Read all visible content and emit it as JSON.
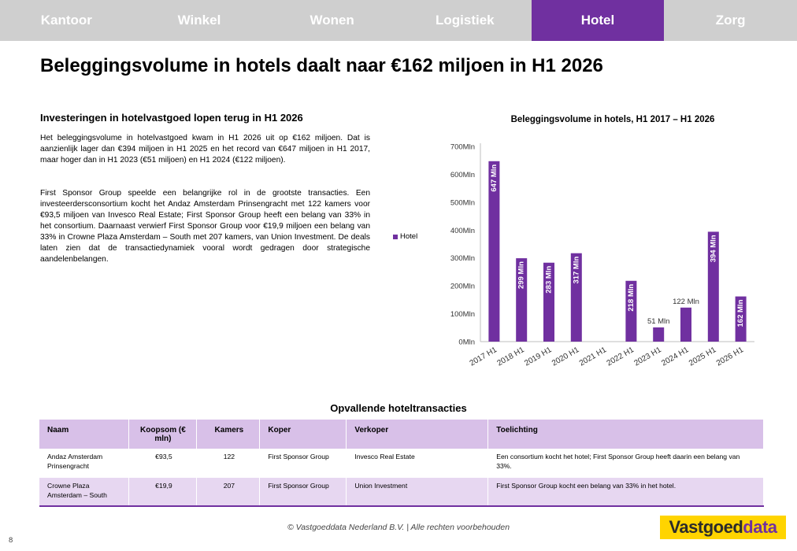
{
  "nav": {
    "tabs": [
      {
        "label": "Kantoor",
        "active": false
      },
      {
        "label": "Winkel",
        "active": false
      },
      {
        "label": "Wonen",
        "active": false
      },
      {
        "label": "Logistiek",
        "active": false
      },
      {
        "label": "Hotel",
        "active": true
      },
      {
        "label": "Zorg",
        "active": false
      }
    ],
    "active_color": "#7030a0"
  },
  "page_title": "Beleggingsvolume in hotels daalt naar €162 miljoen in H1 2026",
  "left": {
    "heading": "Investeringen in hotelvastgoed lopen terug in H1 2026",
    "paragraph1": "Het beleggingsvolume in hotelvastgoed kwam in H1 2026 uit op €162 miljoen. Dat is aanzienlijk lager dan €394 miljoen in H1 2025 en het record van €647 miljoen in H1 2017, maar hoger dan in H1 2023 (€51 miljoen) en H1 2024 (€122 miljoen).",
    "paragraph2": "First Sponsor Group speelde een belangrijke rol in de grootste transacties. Een investeerdersconsortium kocht het Andaz Amsterdam Prinsengracht met 122 kamers voor €93,5 miljoen van Invesco Real Estate; First Sponsor Group heeft een belang van 33% in het consortium. Daarnaast verwierf First Sponsor Group voor €19,9 miljoen een belang van 33% in Crowne Plaza Amsterdam – South met 207 kamers, van Union Investment. De deals laten zien dat de transactiedynamiek vooral wordt gedragen door strategische aandelenbelangen."
  },
  "chart_data": {
    "type": "bar",
    "title": "Beleggingsvolume in hotels, H1 2017 – H1 2026",
    "categories": [
      "2017 H1",
      "2018 H1",
      "2019 H1",
      "2020 H1",
      "2021 H1",
      "2022 H1",
      "2023 H1",
      "2024 H1",
      "2025 H1",
      "2026 H1"
    ],
    "series": [
      {
        "name": "Hotel",
        "color": "#7030a0",
        "values": [
          647,
          299,
          283,
          317,
          null,
          218,
          51,
          122,
          394,
          162
        ],
        "labels": [
          "647 Mln",
          "299 Mln",
          "283 Mln",
          "317 Mln",
          "",
          "218 Mln",
          "51 Mln",
          "122 Mln",
          "394 Mln",
          "162 Mln"
        ]
      }
    ],
    "yticks": [
      "0Mln",
      "100Mln",
      "200Mln",
      "300Mln",
      "400Mln",
      "500Mln",
      "600Mln",
      "700Mln"
    ],
    "ylim": [
      0,
      700
    ],
    "legend_position": "left",
    "grid": false
  },
  "table": {
    "title": "Opvallende hoteltransacties",
    "headers": [
      "Naam",
      "Koopsom (€ mln)",
      "Kamers",
      "Koper",
      "Verkoper",
      "Toelichting"
    ],
    "rows": [
      {
        "naam": "Andaz Amsterdam Prinsengracht",
        "koopsom": "€93,5",
        "kamers": "122",
        "koper": "First Sponsor Group",
        "verkoper": "Invesco Real Estate",
        "toelichting": "Een consortium kocht het hotel; First Sponsor Group heeft daarin een belang van 33%."
      },
      {
        "naam": "Crowne Plaza Amsterdam – South",
        "koopsom": "€19,9",
        "kamers": "207",
        "koper": "First Sponsor Group",
        "verkoper": "Union Investment",
        "toelichting": "First Sponsor Group kocht een belang van 33% in het hotel."
      }
    ]
  },
  "footer": {
    "copyright": "© Vastgoeddata Nederland B.V. | Alle rechten voorbehouden",
    "page_number": "8",
    "logo_part1": "Vastgoed",
    "logo_part2": "data"
  }
}
